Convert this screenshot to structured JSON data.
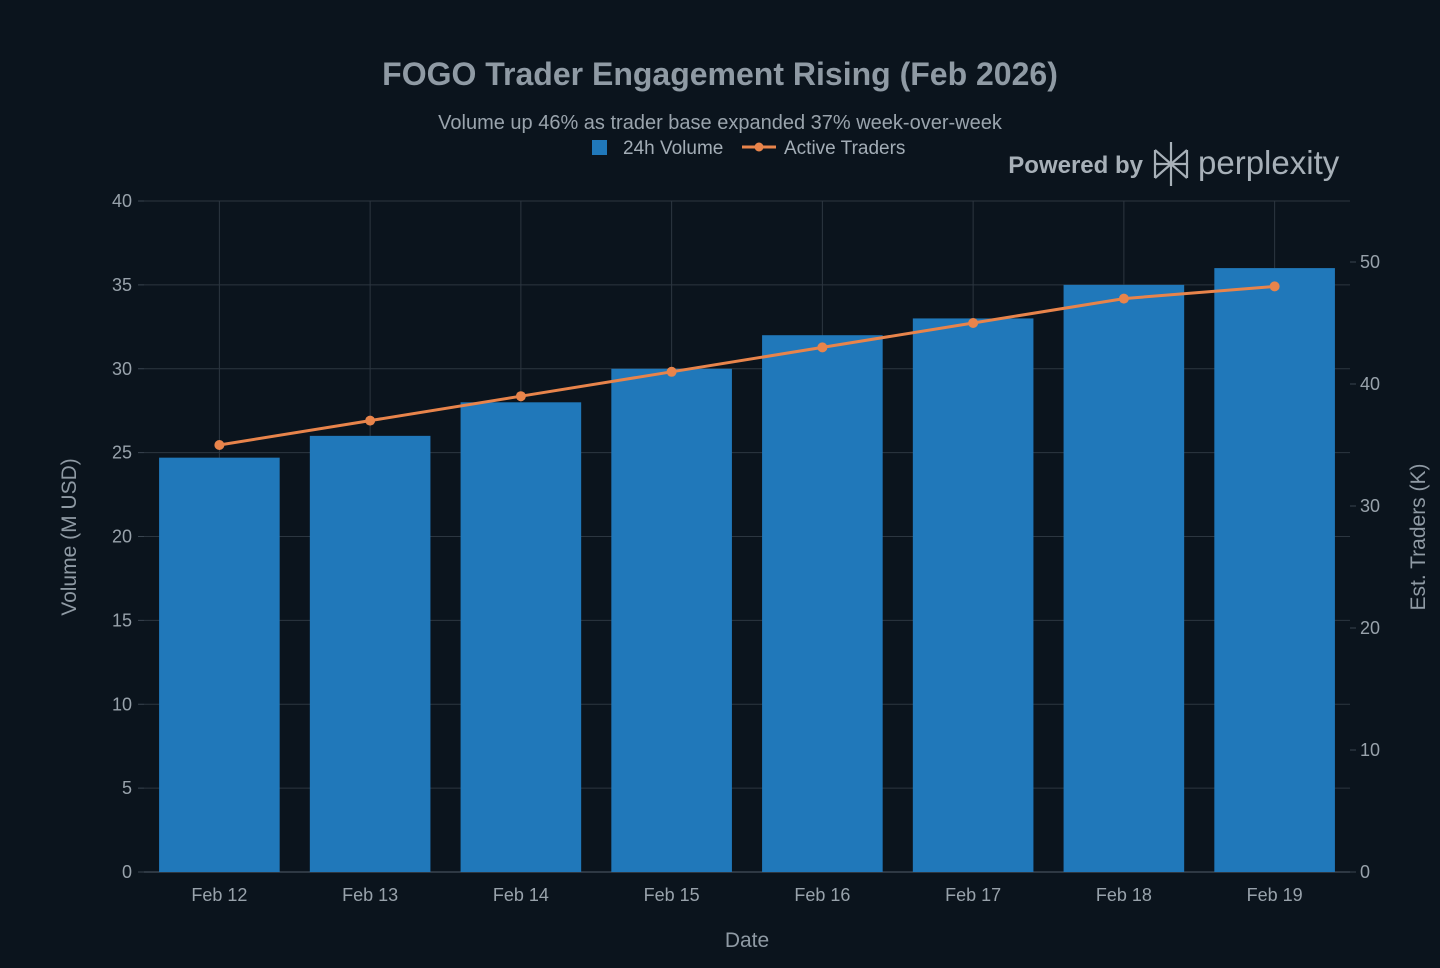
{
  "colors": {
    "background": "#0b141d",
    "volume_bar": "#2078ba",
    "traders_line": "#e8844b",
    "grid": "#2c3640",
    "text": "#98a2ab"
  },
  "branding": {
    "powered_by": "Powered by",
    "name": "perplexity",
    "icon": "perplexity-logo-icon"
  },
  "chart_data": {
    "type": "bar",
    "title": "FOGO Trader Engagement Rising (Feb 2026)",
    "subtitle": "Volume up 46% as trader base expanded 37% week-over-week",
    "xlabel": "Date",
    "ylabel": "Volume (M USD)",
    "y2label": "Est. Traders (K)",
    "categories": [
      "Feb 12",
      "Feb 13",
      "Feb 14",
      "Feb 15",
      "Feb 16",
      "Feb 17",
      "Feb 18",
      "Feb 19"
    ],
    "series": [
      {
        "name": "24h Volume",
        "type": "bar",
        "axis": "left",
        "values": [
          24.7,
          26,
          28,
          30,
          32,
          33,
          35,
          36
        ]
      },
      {
        "name": "Active Traders",
        "type": "line",
        "axis": "right",
        "values": [
          35,
          37,
          39,
          41,
          43,
          45,
          47,
          48
        ]
      }
    ],
    "ylim": [
      0,
      40
    ],
    "yticks": [
      0,
      5,
      10,
      15,
      20,
      25,
      30,
      35,
      40
    ],
    "y2lim": [
      0,
      55
    ],
    "y2ticks": [
      0,
      10,
      20,
      30,
      40,
      50
    ],
    "grid": true,
    "legend_position": "top-center"
  }
}
